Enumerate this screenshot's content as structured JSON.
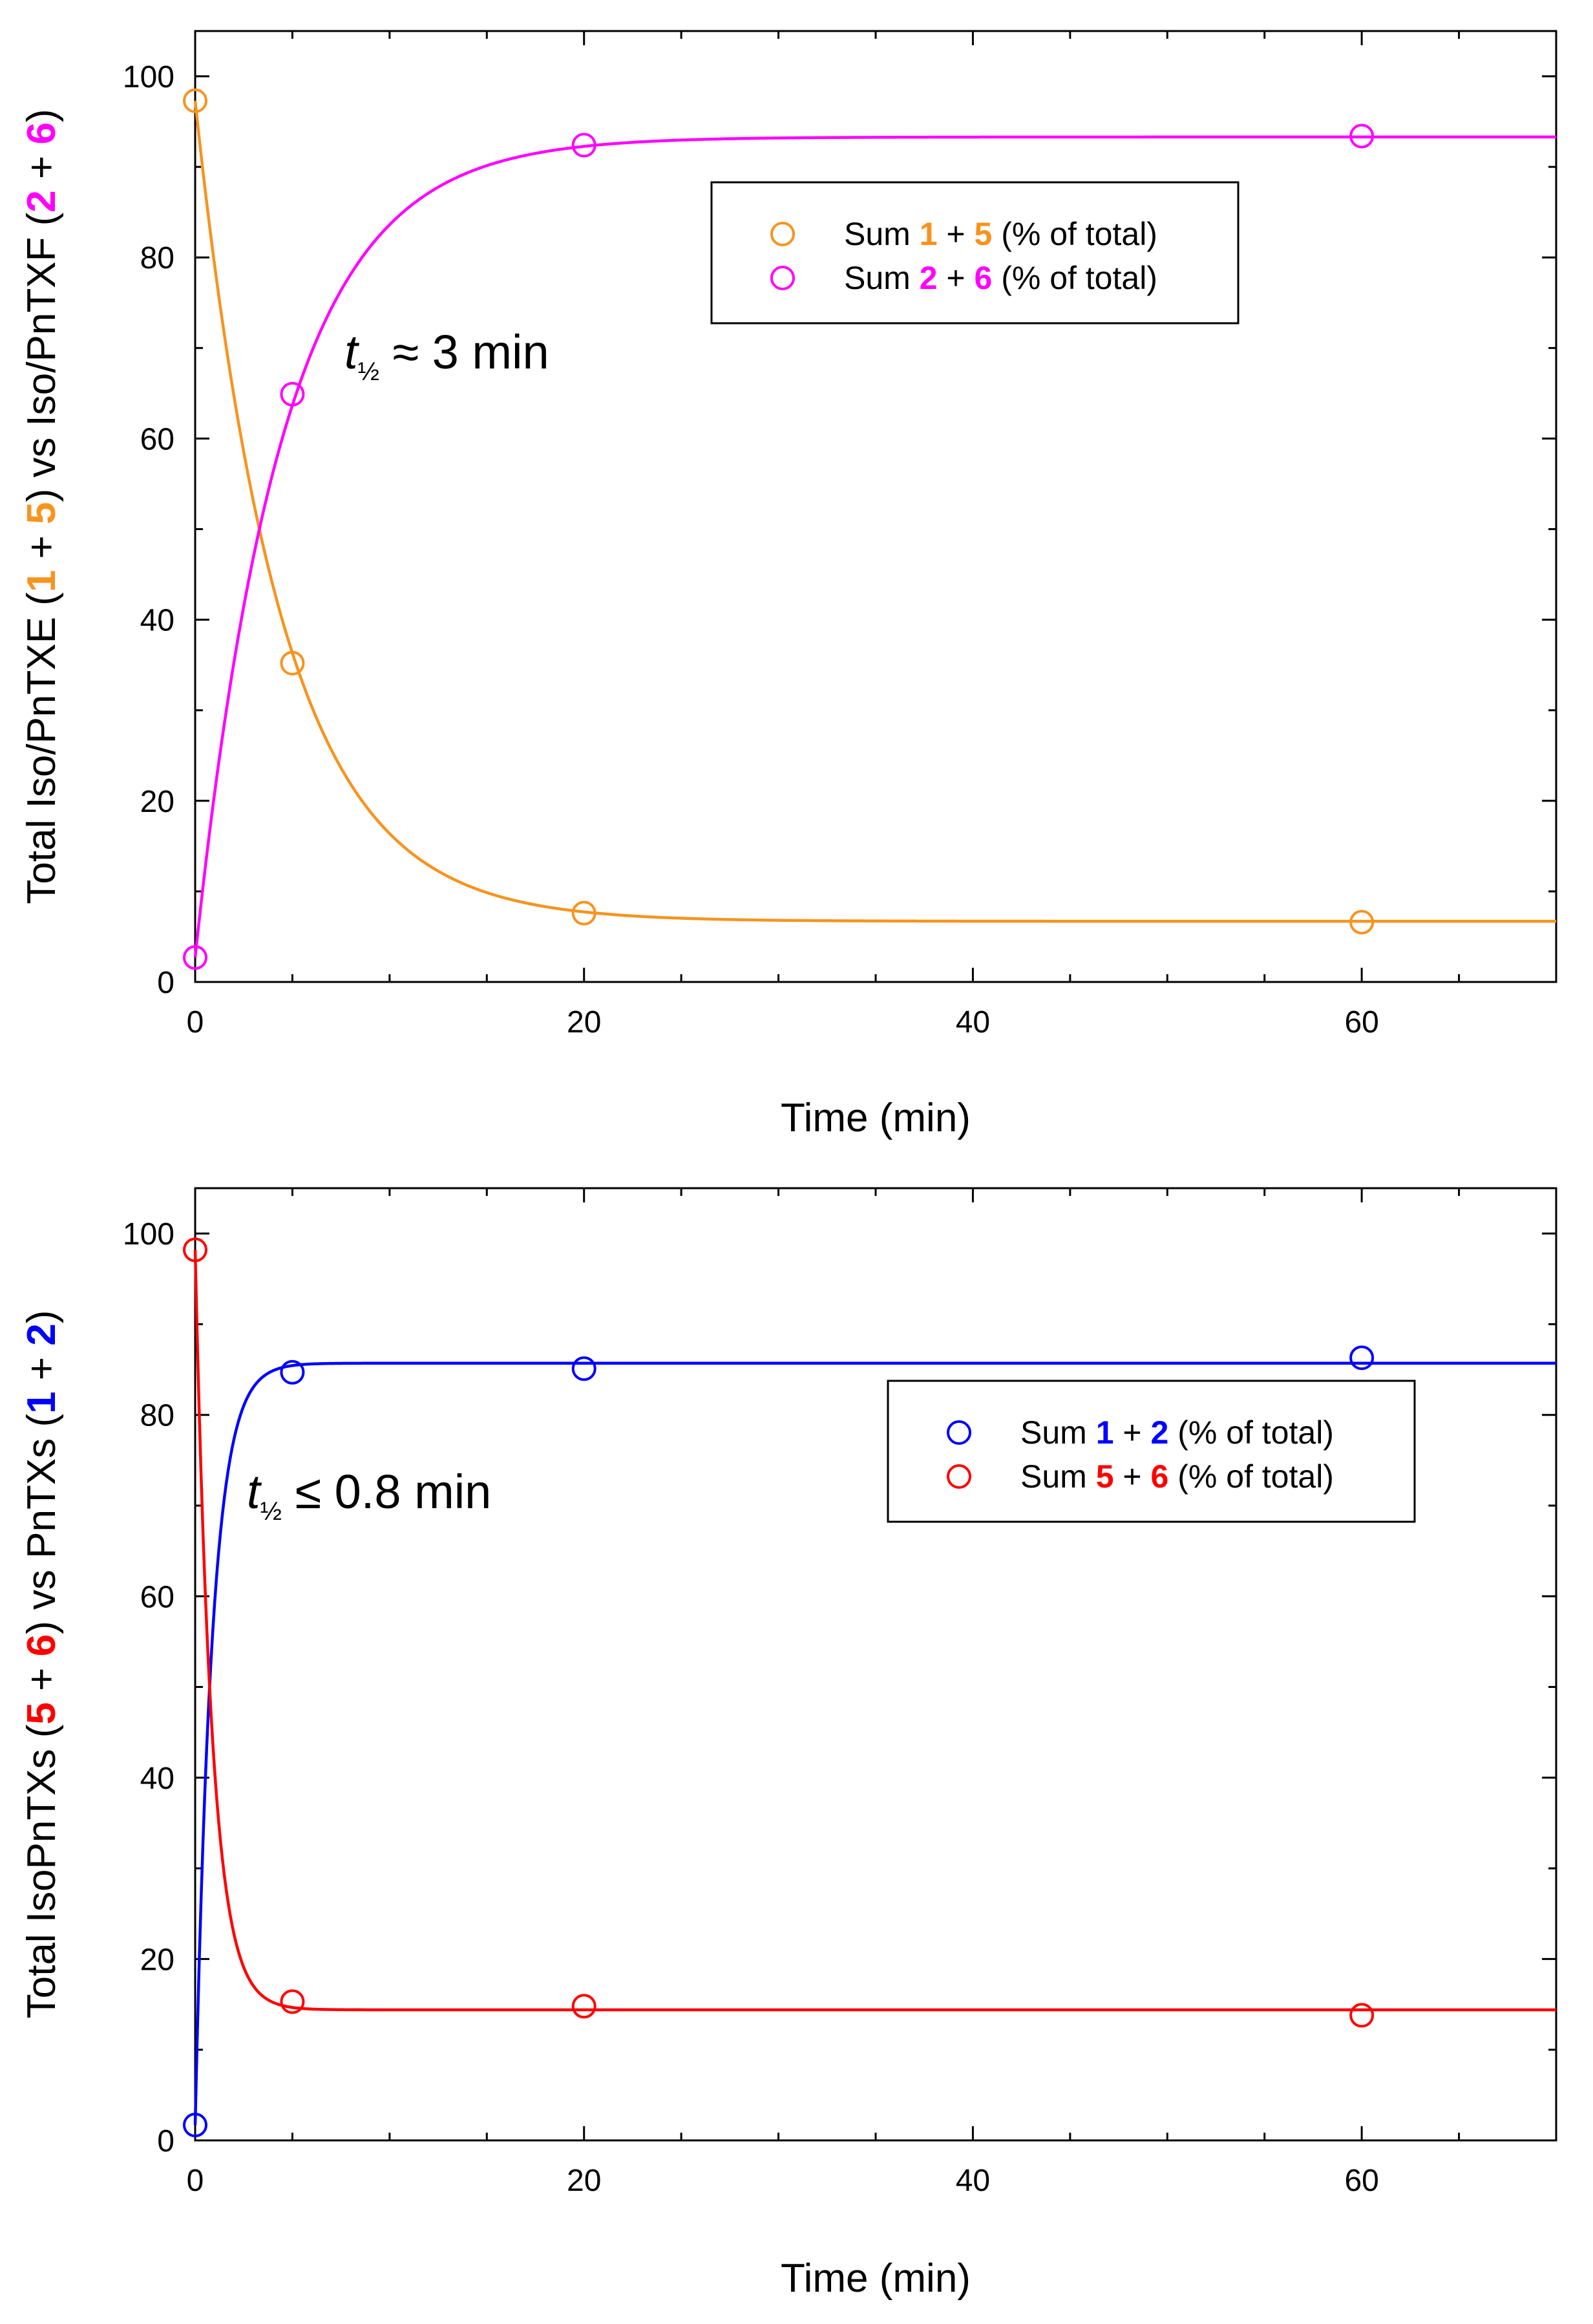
{
  "chart_data": [
    {
      "type": "scatter",
      "title": "",
      "xlabel": "Time (min)",
      "ylabel": {
        "parts": [
          {
            "text": "Total Iso/PnTXE (",
            "color": "#000000",
            "bold": false
          },
          {
            "text": "1",
            "color": "#F7931E",
            "bold": true
          },
          {
            "text": " + ",
            "color": "#000000",
            "bold": false
          },
          {
            "text": "5",
            "color": "#F7931E",
            "bold": true
          },
          {
            "text": ") vs Iso/PnTXF (",
            "color": "#000000",
            "bold": false
          },
          {
            "text": "2",
            "color": "#FF00FF",
            "bold": true
          },
          {
            "text": " + ",
            "color": "#000000",
            "bold": false
          },
          {
            "text": "6",
            "color": "#FF00FF",
            "bold": true
          },
          {
            "text": ")",
            "color": "#000000",
            "bold": false
          }
        ]
      },
      "xlim": [
        0,
        70
      ],
      "ylim": [
        0,
        105
      ],
      "xticks": [
        0,
        20,
        40,
        60
      ],
      "yticks": [
        0,
        20,
        40,
        60,
        80,
        100
      ],
      "xminor_step": 5,
      "yminor_step": 10,
      "annotation": {
        "t": "t",
        "sub": "½",
        "rest": " ≈ 3 min"
      },
      "series": [
        {
          "name": "Sum 1 + 5 (% of total)",
          "legend": [
            {
              "text": "Sum ",
              "color": "#000000",
              "bold": false
            },
            {
              "text": "1",
              "color": "#F7931E",
              "bold": true
            },
            {
              "text": " + ",
              "color": "#000000",
              "bold": false
            },
            {
              "text": "5",
              "color": "#F7931E",
              "bold": true
            },
            {
              "text": " (% of total)",
              "color": "#000000",
              "bold": false
            }
          ],
          "color": "#F7931E",
          "x": [
            0,
            5,
            20,
            60
          ],
          "y": [
            97.3,
            35.2,
            7.6,
            6.6
          ],
          "fit": {
            "model": "exp_decay",
            "plateau": 6.7,
            "start": 97.3,
            "half_life": 3.1
          }
        },
        {
          "name": "Sum 2 + 6 (% of total)",
          "legend": [
            {
              "text": "Sum ",
              "color": "#000000",
              "bold": false
            },
            {
              "text": "2",
              "color": "#FF00FF",
              "bold": true
            },
            {
              "text": " + ",
              "color": "#000000",
              "bold": false
            },
            {
              "text": "6",
              "color": "#FF00FF",
              "bold": true
            },
            {
              "text": " (% of total)",
              "color": "#000000",
              "bold": false
            }
          ],
          "color": "#FF00FF",
          "x": [
            0,
            5,
            20,
            60
          ],
          "y": [
            2.7,
            64.9,
            92.4,
            93.4
          ],
          "fit": {
            "model": "exp_decay",
            "plateau": 93.3,
            "start": 2.7,
            "half_life": 3.1
          }
        }
      ]
    },
    {
      "type": "scatter",
      "title": "",
      "xlabel": "Time (min)",
      "ylabel": {
        "parts": [
          {
            "text": "Total IsoPnTXs (",
            "color": "#000000",
            "bold": false
          },
          {
            "text": "5",
            "color": "#FF0000",
            "bold": true
          },
          {
            "text": " + ",
            "color": "#000000",
            "bold": false
          },
          {
            "text": "6",
            "color": "#FF0000",
            "bold": true
          },
          {
            "text": ") vs PnTXs (",
            "color": "#000000",
            "bold": false
          },
          {
            "text": "1",
            "color": "#0000FF",
            "bold": true
          },
          {
            "text": " + ",
            "color": "#000000",
            "bold": false
          },
          {
            "text": "2",
            "color": "#0000FF",
            "bold": true
          },
          {
            "text": ")",
            "color": "#000000",
            "bold": false
          }
        ]
      },
      "xlim": [
        0,
        70
      ],
      "ylim": [
        0,
        105
      ],
      "xticks": [
        0,
        20,
        40,
        60
      ],
      "yticks": [
        0,
        20,
        40,
        60,
        80,
        100
      ],
      "xminor_step": 5,
      "yminor_step": 10,
      "annotation": {
        "t": "t",
        "sub": "½",
        "rest": " ≤ 0.8 min"
      },
      "series": [
        {
          "name": "Sum 1 + 2 (% of total)",
          "legend": [
            {
              "text": "Sum ",
              "color": "#000000",
              "bold": false
            },
            {
              "text": "1",
              "color": "#0000FF",
              "bold": true
            },
            {
              "text": " + ",
              "color": "#000000",
              "bold": false
            },
            {
              "text": "2",
              "color": "#0000FF",
              "bold": true
            },
            {
              "text": " (% of total)",
              "color": "#000000",
              "bold": false
            }
          ],
          "color": "#0000FF",
          "x": [
            0,
            5,
            20,
            60
          ],
          "y": [
            1.7,
            84.7,
            85.1,
            86.3
          ],
          "fit": {
            "model": "exp_decay",
            "plateau": 85.7,
            "start": 1.7,
            "half_life": 0.6
          }
        },
        {
          "name": "Sum 5 + 6 (% of total)",
          "legend": [
            {
              "text": "Sum ",
              "color": "#000000",
              "bold": false
            },
            {
              "text": "5",
              "color": "#FF0000",
              "bold": true
            },
            {
              "text": " + ",
              "color": "#000000",
              "bold": false
            },
            {
              "text": "6",
              "color": "#FF0000",
              "bold": true
            },
            {
              "text": " (% of total)",
              "color": "#000000",
              "bold": false
            }
          ],
          "color": "#FF0000",
          "x": [
            0,
            5,
            20,
            60
          ],
          "y": [
            98.2,
            15.3,
            14.8,
            13.8
          ],
          "fit": {
            "model": "exp_decay",
            "plateau": 14.4,
            "start": 98.2,
            "half_life": 0.6
          }
        }
      ]
    }
  ]
}
